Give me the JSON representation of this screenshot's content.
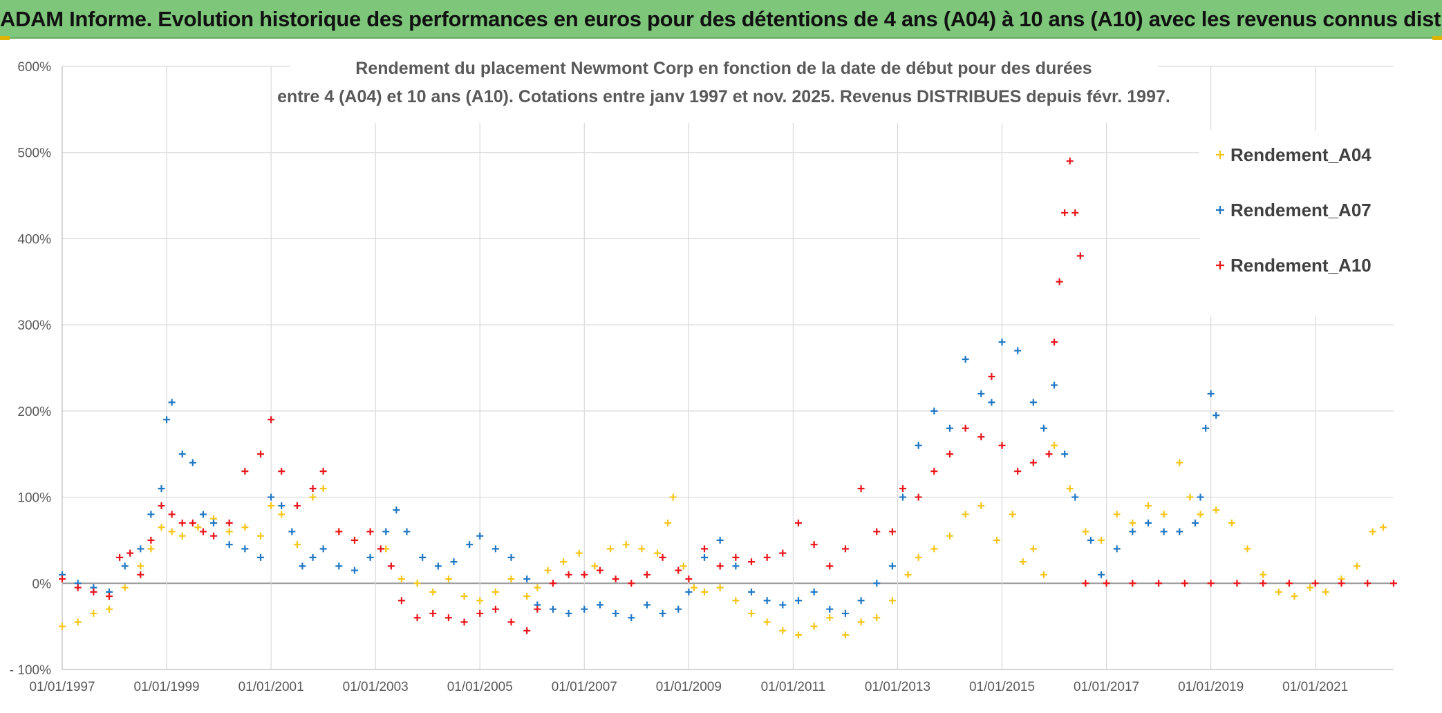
{
  "banner": {
    "title": "ADAM Informe. Evolution historique des performances en euros pour des détentions de 4 ans (A04) à 10 ans (A10) avec les revenus connus distribués"
  },
  "chart_data": {
    "type": "scatter",
    "title_line1": "Rendement du placement Newmont Corp en fonction de la date de début pour des durées",
    "title_line2": "entre 4 (A04) et 10 ans (A10). Cotations entre janv 1997 et nov. 2025. Revenus DISTRIBUES depuis févr. 1997.",
    "xlabel": "",
    "ylabel": "",
    "xlim": [
      1997.0,
      2022.5
    ],
    "ylim": [
      -100,
      600
    ],
    "x_ticks": [
      1997,
      1999,
      2001,
      2003,
      2005,
      2007,
      2009,
      2011,
      2013,
      2015,
      2017,
      2019,
      2021
    ],
    "x_tick_labels": [
      "01/01/1997",
      "01/01/1999",
      "01/01/2001",
      "01/01/2003",
      "01/01/2005",
      "01/01/2007",
      "01/01/2009",
      "01/01/2011",
      "01/01/2013",
      "01/01/2015",
      "01/01/2017",
      "01/01/2019",
      "01/01/2021"
    ],
    "y_ticks": [
      -100,
      0,
      100,
      200,
      300,
      400,
      500,
      600
    ],
    "y_tick_labels": [
      "- 100%",
      "0%",
      "100%",
      "200%",
      "300%",
      "400%",
      "500%",
      "600%"
    ],
    "legend_position": "top-right",
    "grid": true,
    "series": [
      {
        "name": "Rendement_A04",
        "color": "#f5c518",
        "points": [
          [
            1997.0,
            -50
          ],
          [
            1997.3,
            -45
          ],
          [
            1997.6,
            -35
          ],
          [
            1997.9,
            -30
          ],
          [
            1998.2,
            -5
          ],
          [
            1998.5,
            20
          ],
          [
            1998.7,
            40
          ],
          [
            1998.9,
            65
          ],
          [
            1999.1,
            60
          ],
          [
            1999.3,
            55
          ],
          [
            1999.6,
            65
          ],
          [
            1999.9,
            75
          ],
          [
            2000.2,
            60
          ],
          [
            2000.5,
            65
          ],
          [
            2000.8,
            55
          ],
          [
            2001.0,
            90
          ],
          [
            2001.2,
            80
          ],
          [
            2001.5,
            45
          ],
          [
            2001.8,
            100
          ],
          [
            2002.0,
            110
          ],
          [
            2002.3,
            60
          ],
          [
            2002.6,
            50
          ],
          [
            2002.9,
            60
          ],
          [
            2003.2,
            40
          ],
          [
            2003.5,
            5
          ],
          [
            2003.8,
            0
          ],
          [
            2004.1,
            -10
          ],
          [
            2004.4,
            5
          ],
          [
            2004.7,
            -15
          ],
          [
            2005.0,
            -20
          ],
          [
            2005.3,
            -10
          ],
          [
            2005.6,
            5
          ],
          [
            2005.9,
            -15
          ],
          [
            2006.1,
            -5
          ],
          [
            2006.3,
            15
          ],
          [
            2006.6,
            25
          ],
          [
            2006.9,
            35
          ],
          [
            2007.2,
            20
          ],
          [
            2007.5,
            40
          ],
          [
            2007.8,
            45
          ],
          [
            2008.1,
            40
          ],
          [
            2008.4,
            35
          ],
          [
            2008.6,
            70
          ],
          [
            2008.7,
            100
          ],
          [
            2008.9,
            20
          ],
          [
            2009.1,
            -5
          ],
          [
            2009.3,
            -10
          ],
          [
            2009.6,
            -5
          ],
          [
            2009.9,
            -20
          ],
          [
            2010.2,
            -35
          ],
          [
            2010.5,
            -45
          ],
          [
            2010.8,
            -55
          ],
          [
            2011.1,
            -60
          ],
          [
            2011.4,
            -50
          ],
          [
            2011.7,
            -40
          ],
          [
            2012.0,
            -60
          ],
          [
            2012.3,
            -45
          ],
          [
            2012.6,
            -40
          ],
          [
            2012.9,
            -20
          ],
          [
            2013.2,
            10
          ],
          [
            2013.4,
            30
          ],
          [
            2013.7,
            40
          ],
          [
            2014.0,
            55
          ],
          [
            2014.3,
            80
          ],
          [
            2014.6,
            90
          ],
          [
            2014.9,
            50
          ],
          [
            2015.2,
            80
          ],
          [
            2015.4,
            25
          ],
          [
            2015.6,
            40
          ],
          [
            2015.8,
            10
          ],
          [
            2016.0,
            160
          ],
          [
            2016.3,
            110
          ],
          [
            2016.6,
            60
          ],
          [
            2016.9,
            50
          ],
          [
            2017.2,
            80
          ],
          [
            2017.5,
            70
          ],
          [
            2017.8,
            90
          ],
          [
            2018.1,
            80
          ],
          [
            2018.4,
            140
          ],
          [
            2018.6,
            100
          ],
          [
            2018.8,
            80
          ],
          [
            2019.1,
            85
          ],
          [
            2019.4,
            70
          ],
          [
            2019.7,
            40
          ],
          [
            2020.0,
            10
          ],
          [
            2020.3,
            -10
          ],
          [
            2020.6,
            -15
          ],
          [
            2020.9,
            -5
          ],
          [
            2021.2,
            -10
          ],
          [
            2021.5,
            5
          ],
          [
            2021.8,
            20
          ],
          [
            2022.1,
            60
          ],
          [
            2022.3,
            65
          ]
        ]
      },
      {
        "name": "Rendement_A07",
        "color": "#1f77c4",
        "points": [
          [
            1997.0,
            10
          ],
          [
            1997.3,
            0
          ],
          [
            1997.6,
            -5
          ],
          [
            1997.9,
            -10
          ],
          [
            1998.2,
            20
          ],
          [
            1998.5,
            40
          ],
          [
            1998.7,
            80
          ],
          [
            1998.9,
            110
          ],
          [
            1999.0,
            190
          ],
          [
            1999.1,
            210
          ],
          [
            1999.3,
            150
          ],
          [
            1999.5,
            140
          ],
          [
            1999.7,
            80
          ],
          [
            1999.9,
            70
          ],
          [
            2000.2,
            45
          ],
          [
            2000.5,
            40
          ],
          [
            2000.8,
            30
          ],
          [
            2001.0,
            100
          ],
          [
            2001.2,
            90
          ],
          [
            2001.4,
            60
          ],
          [
            2001.6,
            20
          ],
          [
            2001.8,
            30
          ],
          [
            2002.0,
            40
          ],
          [
            2002.3,
            20
          ],
          [
            2002.6,
            15
          ],
          [
            2002.9,
            30
          ],
          [
            2003.2,
            60
          ],
          [
            2003.4,
            85
          ],
          [
            2003.6,
            60
          ],
          [
            2003.9,
            30
          ],
          [
            2004.2,
            20
          ],
          [
            2004.5,
            25
          ],
          [
            2004.8,
            45
          ],
          [
            2005.0,
            55
          ],
          [
            2005.3,
            40
          ],
          [
            2005.6,
            30
          ],
          [
            2005.9,
            5
          ],
          [
            2006.1,
            -25
          ],
          [
            2006.4,
            -30
          ],
          [
            2006.7,
            -35
          ],
          [
            2007.0,
            -30
          ],
          [
            2007.3,
            -25
          ],
          [
            2007.6,
            -35
          ],
          [
            2007.9,
            -40
          ],
          [
            2008.2,
            -25
          ],
          [
            2008.5,
            -35
          ],
          [
            2008.8,
            -30
          ],
          [
            2009.0,
            -10
          ],
          [
            2009.3,
            30
          ],
          [
            2009.6,
            50
          ],
          [
            2009.9,
            20
          ],
          [
            2010.2,
            -10
          ],
          [
            2010.5,
            -20
          ],
          [
            2010.8,
            -25
          ],
          [
            2011.1,
            -20
          ],
          [
            2011.4,
            -10
          ],
          [
            2011.7,
            -30
          ],
          [
            2012.0,
            -35
          ],
          [
            2012.3,
            -20
          ],
          [
            2012.6,
            0
          ],
          [
            2012.9,
            20
          ],
          [
            2013.1,
            100
          ],
          [
            2013.4,
            160
          ],
          [
            2013.7,
            200
          ],
          [
            2014.0,
            180
          ],
          [
            2014.3,
            260
          ],
          [
            2014.6,
            220
          ],
          [
            2014.8,
            210
          ],
          [
            2015.0,
            280
          ],
          [
            2015.3,
            270
          ],
          [
            2015.6,
            210
          ],
          [
            2015.8,
            180
          ],
          [
            2016.0,
            230
          ],
          [
            2016.2,
            150
          ],
          [
            2016.4,
            100
          ],
          [
            2016.7,
            50
          ],
          [
            2016.9,
            10
          ],
          [
            2017.2,
            40
          ],
          [
            2017.5,
            60
          ],
          [
            2017.8,
            70
          ],
          [
            2018.1,
            60
          ],
          [
            2018.4,
            60
          ],
          [
            2018.7,
            70
          ],
          [
            2018.8,
            100
          ],
          [
            2018.9,
            180
          ],
          [
            2019.0,
            220
          ],
          [
            2019.1,
            195
          ]
        ]
      },
      {
        "name": "Rendement_A10",
        "color": "#e8141a",
        "points": [
          [
            1997.0,
            5
          ],
          [
            1997.3,
            -5
          ],
          [
            1997.6,
            -10
          ],
          [
            1997.9,
            -15
          ],
          [
            1998.1,
            30
          ],
          [
            1998.3,
            35
          ],
          [
            1998.5,
            10
          ],
          [
            1998.7,
            50
          ],
          [
            1998.9,
            90
          ],
          [
            1999.1,
            80
          ],
          [
            1999.3,
            70
          ],
          [
            1999.5,
            70
          ],
          [
            1999.7,
            60
          ],
          [
            1999.9,
            55
          ],
          [
            2000.2,
            70
          ],
          [
            2000.5,
            130
          ],
          [
            2000.8,
            150
          ],
          [
            2001.0,
            190
          ],
          [
            2001.2,
            130
          ],
          [
            2001.5,
            90
          ],
          [
            2001.8,
            110
          ],
          [
            2002.0,
            130
          ],
          [
            2002.3,
            60
          ],
          [
            2002.6,
            50
          ],
          [
            2002.9,
            60
          ],
          [
            2003.1,
            40
          ],
          [
            2003.3,
            20
          ],
          [
            2003.5,
            -20
          ],
          [
            2003.8,
            -40
          ],
          [
            2004.1,
            -35
          ],
          [
            2004.4,
            -40
          ],
          [
            2004.7,
            -45
          ],
          [
            2005.0,
            -35
          ],
          [
            2005.3,
            -30
          ],
          [
            2005.6,
            -45
          ],
          [
            2005.9,
            -55
          ],
          [
            2006.1,
            -30
          ],
          [
            2006.4,
            0
          ],
          [
            2006.7,
            10
          ],
          [
            2007.0,
            10
          ],
          [
            2007.3,
            15
          ],
          [
            2007.6,
            5
          ],
          [
            2007.9,
            0
          ],
          [
            2008.2,
            10
          ],
          [
            2008.5,
            30
          ],
          [
            2008.8,
            15
          ],
          [
            2009.0,
            5
          ],
          [
            2009.3,
            40
          ],
          [
            2009.6,
            20
          ],
          [
            2009.9,
            30
          ],
          [
            2010.2,
            25
          ],
          [
            2010.5,
            30
          ],
          [
            2010.8,
            35
          ],
          [
            2011.1,
            70
          ],
          [
            2011.4,
            45
          ],
          [
            2011.7,
            20
          ],
          [
            2012.0,
            40
          ],
          [
            2012.3,
            110
          ],
          [
            2012.6,
            60
          ],
          [
            2012.9,
            60
          ],
          [
            2013.1,
            110
          ],
          [
            2013.4,
            100
          ],
          [
            2013.7,
            130
          ],
          [
            2014.0,
            150
          ],
          [
            2014.3,
            180
          ],
          [
            2014.6,
            170
          ],
          [
            2014.8,
            240
          ],
          [
            2015.0,
            160
          ],
          [
            2015.3,
            130
          ],
          [
            2015.6,
            140
          ],
          [
            2015.9,
            150
          ],
          [
            2016.0,
            280
          ],
          [
            2016.1,
            350
          ],
          [
            2016.2,
            430
          ],
          [
            2016.3,
            490
          ],
          [
            2016.4,
            430
          ],
          [
            2016.5,
            380
          ],
          [
            2016.6,
            0
          ],
          [
            2017.0,
            0
          ],
          [
            2017.5,
            0
          ],
          [
            2018.0,
            0
          ],
          [
            2018.5,
            0
          ],
          [
            2019.0,
            0
          ],
          [
            2019.5,
            0
          ],
          [
            2020.0,
            0
          ],
          [
            2020.5,
            0
          ],
          [
            2021.0,
            0
          ],
          [
            2021.5,
            0
          ],
          [
            2022.0,
            0
          ],
          [
            2022.5,
            0
          ]
        ]
      }
    ]
  }
}
